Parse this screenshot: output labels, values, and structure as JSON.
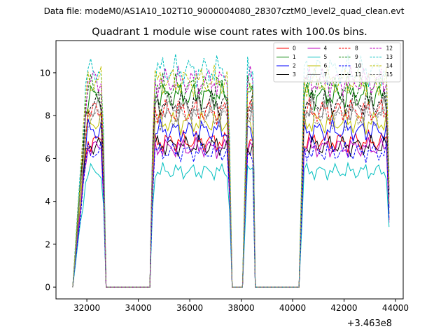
{
  "header": {
    "data_file": "Data file: modeM0/AS1A10_102T10_9000004080_28307cztM0_level2_quad_clean.evt"
  },
  "chart_data": {
    "type": "line",
    "title": "Quadrant 1 module wise count rates with 100.0s bins.",
    "xlabel": "",
    "ylabel": "",
    "x_offset_label": "+3.463e8",
    "xlim": [
      30800,
      44300
    ],
    "ylim": [
      -0.55,
      11.5
    ],
    "x_ticks": [
      32000,
      34000,
      36000,
      38000,
      40000,
      42000,
      44000
    ],
    "x_tick_labels": [
      "32000",
      "34000",
      "36000",
      "38000",
      "40000",
      "42000",
      "44000"
    ],
    "y_ticks": [
      0,
      2,
      4,
      6,
      8,
      10
    ],
    "y_tick_labels": [
      "0",
      "2",
      "4",
      "6",
      "8",
      "10"
    ],
    "grid": false,
    "legend_position": "top-right",
    "segments": [
      {
        "start": 32000,
        "end": 32600,
        "ramp": [
          31450,
          32750
        ]
      },
      {
        "start": 34600,
        "end": 37500,
        "ramp": [
          34450,
          37650
        ]
      },
      {
        "start": 38250,
        "end": 38450,
        "ramp": [
          38050,
          38550
        ]
      },
      {
        "start": 40450,
        "end": 43700,
        "ramp": [
          40250,
          43800
        ]
      }
    ],
    "series": [
      {
        "name": "0",
        "color": "#ff0000",
        "dash": "solid",
        "level": 6.8
      },
      {
        "name": "1",
        "color": "#008000",
        "dash": "solid",
        "level": 8.9
      },
      {
        "name": "2",
        "color": "#0000ff",
        "dash": "solid",
        "level": 7.3
      },
      {
        "name": "3",
        "color": "#000000",
        "dash": "solid",
        "level": 6.6
      },
      {
        "name": "4",
        "color": "#bf00bf",
        "dash": "solid",
        "level": 6.5
      },
      {
        "name": "5",
        "color": "#00bfbf",
        "dash": "solid",
        "level": 5.4
      },
      {
        "name": "6",
        "color": "#bfbf00",
        "dash": "solid",
        "level": 7.7
      },
      {
        "name": "7",
        "color": "#808080",
        "dash": "solid",
        "level": 8.3
      },
      {
        "name": "8",
        "color": "#ff0000",
        "dash": "dashed",
        "level": 8.2
      },
      {
        "name": "9",
        "color": "#008000",
        "dash": "dashed",
        "level": 9.3
      },
      {
        "name": "10",
        "color": "#0000ff",
        "dash": "dashed",
        "level": 6.3
      },
      {
        "name": "11",
        "color": "#000000",
        "dash": "dashed",
        "level": 8.6
      },
      {
        "name": "12",
        "color": "#bf00bf",
        "dash": "dashed",
        "level": 9.6
      },
      {
        "name": "13",
        "color": "#00bfbf",
        "dash": "dashed",
        "level": 10.1
      },
      {
        "name": "14",
        "color": "#bfbf00",
        "dash": "dashed",
        "level": 9.6
      },
      {
        "name": "15",
        "color": "#808080",
        "dash": "dashed",
        "level": 7.9
      }
    ]
  }
}
